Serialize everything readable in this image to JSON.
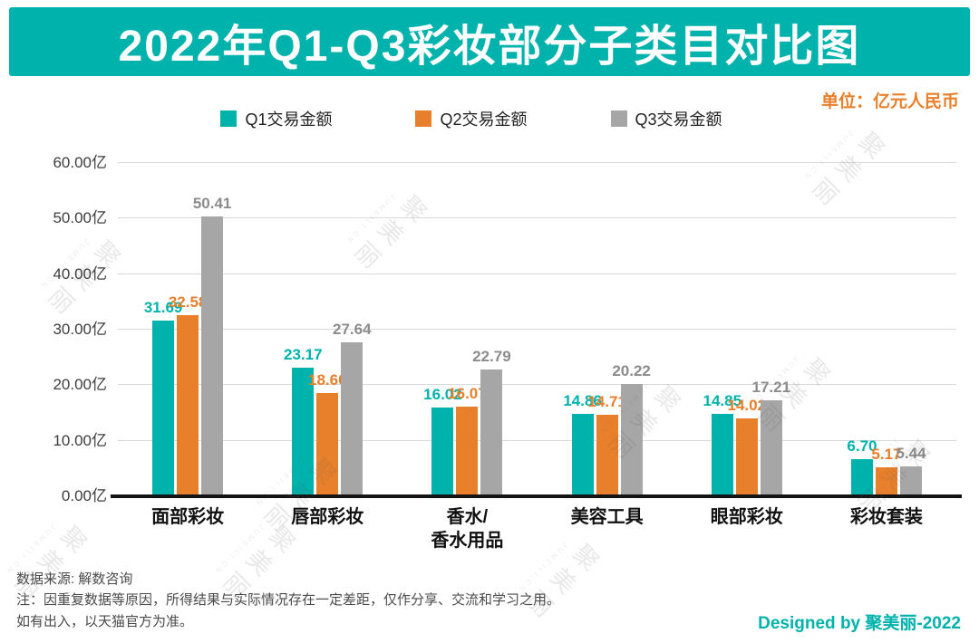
{
  "title": "2022年Q1-Q3彩妆部分子类目对比图",
  "unit_label": "单位：亿元人民币",
  "legend": [
    {
      "label": "Q1交易金额",
      "color": "#00b2ac"
    },
    {
      "label": "Q2交易金额",
      "color": "#e87f2b"
    },
    {
      "label": "Q3交易金额",
      "color": "#a6a6a6"
    }
  ],
  "chart_data": {
    "type": "bar",
    "title": "2022年Q1-Q3彩妆部分子类目对比图",
    "categories": [
      "面部彩妆",
      "唇部彩妆",
      "香水/\n香水用品",
      "美容工具",
      "眼部彩妆",
      "彩妆套装"
    ],
    "series": [
      {
        "name": "Q1交易金额",
        "color": "#00b2ac",
        "label_color": "#00b2ac",
        "values": [
          31.69,
          23.17,
          16.02,
          14.86,
          14.85,
          6.7
        ]
      },
      {
        "name": "Q2交易金额",
        "color": "#e87f2b",
        "label_color": "#e87f2b",
        "values": [
          32.58,
          18.6,
          16.07,
          14.71,
          14.02,
          5.17
        ]
      },
      {
        "name": "Q3交易金额",
        "color": "#a6a6a6",
        "label_color": "#8c8c8c",
        "values": [
          50.41,
          27.64,
          22.79,
          20.22,
          17.21,
          5.44
        ]
      }
    ],
    "xlabel": "",
    "ylabel": "单位：亿元人民币",
    "ylim": [
      0,
      60
    ],
    "ytick_step": 10,
    "yticks": [
      "60.00亿",
      "50.00亿",
      "40.00亿",
      "30.00亿",
      "20.00亿",
      "10.00亿",
      "0.00亿"
    ],
    "grid": true,
    "legend_position": "top"
  },
  "footer": {
    "source": "数据来源: 解数咨询",
    "note_line1": "注：因重复数据等原因，所得结果与实际情况存在一定差距，仅作分享、交流和学习之用。",
    "note_line2": "如有出入，以天猫官方为准。",
    "credit": "Designed by 聚美丽-2022"
  },
  "watermark": {
    "text": "聚美丽",
    "subtext": "JUMEILI.CN"
  },
  "colors": {
    "teal": "#00b2ac",
    "orange": "#e87f2b",
    "gray": "#a6a6a6"
  }
}
